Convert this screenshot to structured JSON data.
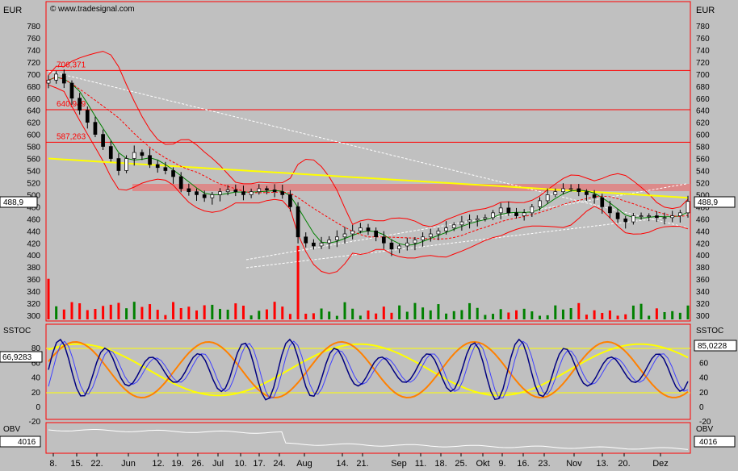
{
  "watermark": "© www.tradesignal.com",
  "colors": {
    "background": "#c0c0c0",
    "border": "#ff0000",
    "price": "#000000",
    "bollinger": "#ff0000",
    "ma_long": "#ffff00",
    "ma_short_green": "#008000",
    "ma_short_red_dashed": "#ff0000",
    "trendline": "#ffffff",
    "resistance_box": "#e08080",
    "stoch_k": "#000080",
    "stoch_d": "#4040ff",
    "stoch_slow": "#ff8000",
    "stoch_slower": "#ffff00",
    "volume_up": "#008000",
    "volume_down": "#ff0000",
    "obv": "#ffffff"
  },
  "chart_data": [
    {
      "id": "price",
      "type": "candlestick",
      "ylabel_left": "EUR",
      "ylabel_right": "EUR",
      "ylim": [
        290,
        800
      ],
      "y_ticks": [
        300,
        320,
        340,
        360,
        380,
        400,
        420,
        440,
        460,
        480,
        500,
        520,
        540,
        560,
        580,
        600,
        620,
        640,
        660,
        680,
        700,
        720,
        740,
        760,
        780
      ],
      "x_tick_labels": [
        "8.",
        "15.",
        "22.",
        "Jun",
        "12.",
        "19.",
        "26.",
        "Jul",
        "10.",
        "17.",
        "24.",
        "Aug",
        "14.",
        "21.",
        "Sep",
        "11.",
        "18.",
        "25.",
        "Okt",
        "9.",
        "16.",
        "23.",
        "Nov",
        "13.",
        "20.",
        "Dez"
      ],
      "last_value": "488,9",
      "horizontal_levels": [
        {
          "label": "706,371",
          "value": 706
        },
        {
          "label": "640,949",
          "value": 641
        },
        {
          "label": "587,263",
          "value": 587
        }
      ],
      "close_series": [
        690,
        700,
        685,
        660,
        640,
        620,
        600,
        580,
        560,
        540,
        560,
        570,
        565,
        550,
        545,
        540,
        530,
        510,
        505,
        500,
        495,
        500,
        505,
        508,
        505,
        500,
        505,
        510,
        508,
        505,
        500,
        480,
        430,
        420,
        415,
        420,
        425,
        430,
        435,
        440,
        445,
        440,
        430,
        420,
        410,
        415,
        420,
        425,
        430,
        435,
        440,
        445,
        450,
        455,
        458,
        460,
        462,
        470,
        478,
        470,
        465,
        470,
        480,
        490,
        500,
        505,
        510,
        510,
        505,
        500,
        495,
        480,
        470,
        460,
        455,
        465,
        465,
        465,
        462,
        462,
        465,
        470,
        488.9
      ]
    },
    {
      "id": "sstoc",
      "type": "line",
      "title": "SSTOC",
      "ylim": [
        -20,
        100
      ],
      "y_ticks": [
        0,
        20,
        40,
        60,
        80
      ],
      "last_value_left": "66,9283",
      "last_value_right": "85,0228",
      "levels": [
        20,
        80
      ]
    },
    {
      "id": "obv",
      "type": "line",
      "title": "OBV",
      "last_value": "4016"
    }
  ]
}
